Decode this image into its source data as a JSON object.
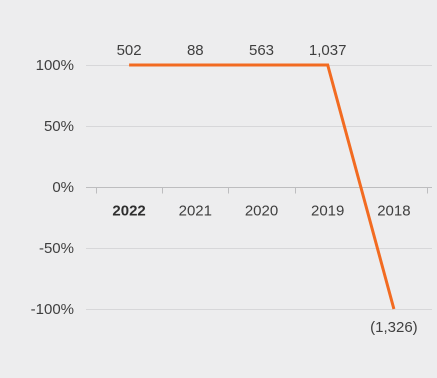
{
  "chart_data": {
    "type": "line",
    "title": "",
    "xlabel": "",
    "ylabel": "",
    "categories": [
      "2022",
      "2021",
      "2020",
      "2019",
      "2018"
    ],
    "highlighted_category": "2022",
    "ylim": [
      -100,
      100
    ],
    "y_ticks": [
      100,
      50,
      0,
      -50,
      -100
    ],
    "y_tick_labels": [
      "100%",
      "50%",
      "0%",
      "-50%",
      "-100%"
    ],
    "grid": true,
    "series": [
      {
        "values": [
          100,
          100,
          100,
          100,
          -100
        ],
        "data_labels": [
          "502",
          "88",
          "563",
          "1,037",
          "(1,326)"
        ],
        "color": "#f26b21"
      }
    ]
  }
}
